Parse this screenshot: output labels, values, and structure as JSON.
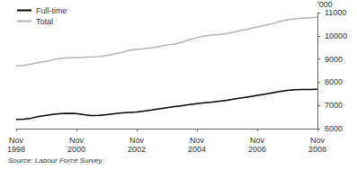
{
  "chart_data": {
    "type": "line",
    "y_label": "'000",
    "source": "Source: Labour Force Survey.",
    "categories": [
      "Nov 1998",
      null,
      null,
      null,
      null,
      null,
      null,
      null,
      "Nov 2000",
      null,
      null,
      null,
      null,
      null,
      null,
      null,
      "Nov 2002",
      null,
      null,
      null,
      null,
      null,
      null,
      null,
      "Nov 2004",
      null,
      null,
      null,
      null,
      null,
      null,
      null,
      "Nov 2006",
      null,
      null,
      null,
      null,
      null,
      null,
      null,
      "Nov 2008"
    ],
    "series": [
      {
        "name": "Full-time",
        "color": "#000000",
        "values": [
          6400,
          6410,
          6450,
          6520,
          6570,
          6620,
          6650,
          6660,
          6650,
          6600,
          6560,
          6570,
          6600,
          6640,
          6680,
          6700,
          6720,
          6760,
          6800,
          6850,
          6900,
          6950,
          6990,
          7040,
          7080,
          7110,
          7140,
          7180,
          7220,
          7280,
          7330,
          7380,
          7430,
          7480,
          7540,
          7600,
          7650,
          7680,
          7690,
          7690,
          7700
        ]
      },
      {
        "name": "Total",
        "color": "#b4b4b4",
        "values": [
          8700,
          8720,
          8780,
          8850,
          8900,
          8980,
          9030,
          9050,
          9060,
          9070,
          9090,
          9100,
          9150,
          9220,
          9280,
          9370,
          9420,
          9440,
          9480,
          9540,
          9600,
          9640,
          9720,
          9840,
          9920,
          9990,
          10030,
          10060,
          10100,
          10170,
          10240,
          10300,
          10380,
          10450,
          10520,
          10610,
          10690,
          10730,
          10760,
          10780,
          10800
        ]
      }
    ],
    "ylim": [
      6000,
      11000
    ],
    "yticks": [
      6000,
      7000,
      8000,
      9000,
      10000,
      11000
    ],
    "grid": false,
    "legend": "top-left"
  }
}
